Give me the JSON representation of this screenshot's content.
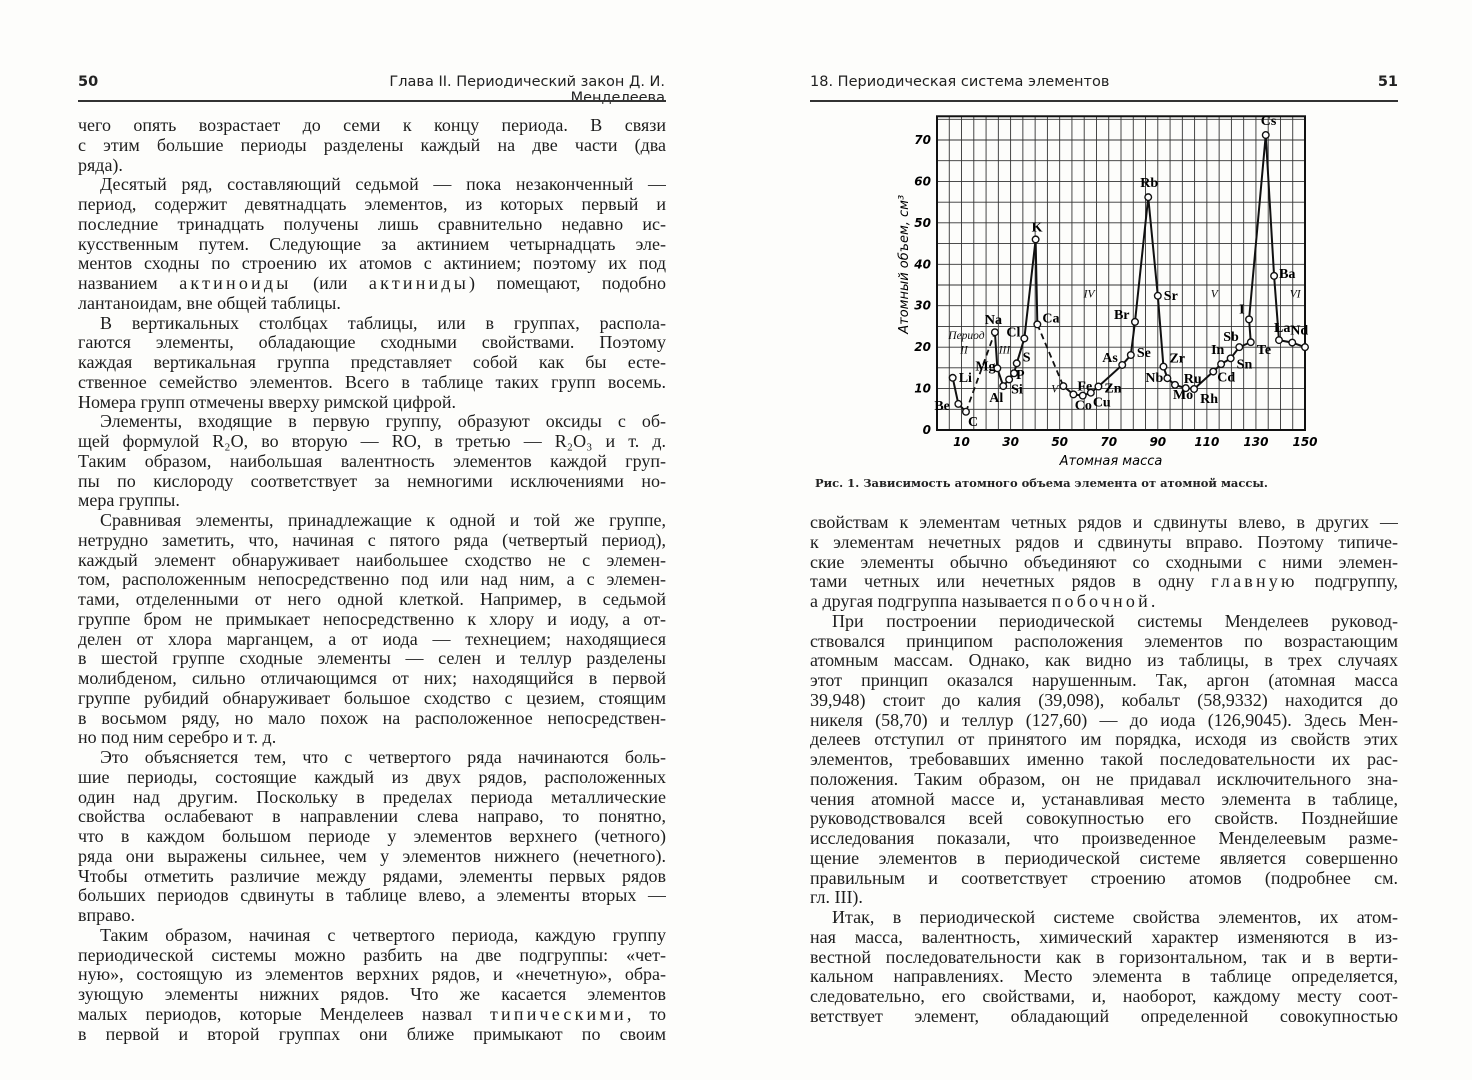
{
  "left_page": {
    "page_number": "50",
    "running_head": "Глава II. Периодический закон Д. И. Менделеева",
    "paragraphs": [
      {
        "lines": [
          "чего опять возрастает до семи к концу периода. В связи",
          "с этим большие периоды разделены каждый на две части (два",
          "ряда)."
        ]
      },
      {
        "lines": [
          "Десятый ряд, составляющий седьмой — пока незаконченный —",
          "период, содержит девятнадцать элементов, из которых первый и",
          "последние тринадцать получены лишь сравнительно недавно ис-",
          "кусственным путем. Следующие за актинием четырнадцать эле-",
          "ментов сходны по строению их атомов с актинием; поэтому их под",
          [
            {
              "t": "названием "
            },
            {
              "t": "актиноиды",
              "s": true
            },
            {
              "t": " (или "
            },
            {
              "t": "актиниды",
              "s": true
            },
            {
              "t": ") помещают, подобно"
            }
          ],
          "лантаноидам, вне общей таблицы."
        ]
      },
      {
        "lines": [
          "В вертикальных столбцах таблицы, или в группах, распола-",
          "гаются элементы, обладающие сходными свойствами. Поэтому",
          "каждая вертикальная группа представляет собой как бы есте-",
          "ственное семейство элементов. Всего в таблице таких групп восемь.",
          "Номера групп отмечены вверху римской цифрой."
        ]
      },
      {
        "lines": [
          "Элементы, входящие в первую группу, образуют оксиды с об-",
          "щей формулой R₂O, во вторую — RO, в третью — R₂O₃ и т. д.",
          "Таким образом, наибольшая валентность элементов каждой груп-",
          "пы по кислороду соответствует за немногими исключениями но-",
          "мера группы."
        ]
      },
      {
        "lines": [
          "Сравнивая элементы, принадлежащие к одной и той же группе,",
          "нетрудно заметить, что, начиная с пятого ряда (четвертый период),",
          "каждый элемент обнаруживает наибольшее сходство не с элемен-",
          "том, расположенным непосредственно под или над ним, а с элемен-",
          "тами, отделенными от него одной клеткой. Например, в седьмой",
          "группе бром не примыкает непосредственно к хлору и иоду, а от-",
          "делен от хлора марганцем, а от иода — технецием; находящиеся",
          "в шестой группе сходные элементы — селен и теллур разделены",
          "молибденом, сильно отличающимся от них; находящийся в первой",
          "группе рубидий обнаруживает большое сходство с цезием, стоящим",
          "в восьмом ряду, но мало похож на расположенное непосредствен-",
          "но под ним серебро и т. д."
        ]
      },
      {
        "lines": [
          "Это объясняется тем, что с четвертого ряда начинаются боль-",
          "шие периоды, состоящие каждый из двух рядов, расположенных",
          "один над другим. Поскольку в пределах периода металлические",
          "свойства ослабевают в направлении слева направо, то понятно,",
          "что в каждом большом периоде у элементов верхнего (четного)",
          "ряда они выражены сильнее, чем у элементов нижнего (нечетного).",
          "Чтобы отметить различие между рядами, элементы первых рядов",
          "больших периодов сдвинуты в таблице влево, а элементы вторых —",
          "вправо."
        ]
      },
      {
        "lines": [
          "Таким образом, начиная с четвертого периода, каждую группу",
          "периодической системы можно разбить на две подгруппы: «чет-",
          "ную», состоящую из элементов верхних рядов, и «нечетную», обра-",
          "зующую элементы нижних рядов. Что же касается элементов",
          [
            {
              "t": "малых периодов, которые Менделеев назвал "
            },
            {
              "t": "типическими",
              "s": true
            },
            {
              "t": ", то"
            }
          ],
          "в первой и второй группах они ближе примыкают по своим"
        ]
      }
    ]
  },
  "right_page": {
    "page_number": "51",
    "running_head": "18. Периодическая система элементов",
    "paragraphs": [
      {
        "lines": [
          "свойствам к элементам четных рядов и сдвинуты влево, в других —",
          "к элементам нечетных рядов и сдвинуты вправо. Поэтому типиче-",
          "ские элементы обычно объединяют со сходными с ними элемен-",
          [
            {
              "t": "тами четных или нечетных рядов в одну "
            },
            {
              "t": "главную",
              "s": true
            },
            {
              "t": " подгруппу,"
            }
          ],
          [
            {
              "t": "а другая подгруппа называется "
            },
            {
              "t": "побочной",
              "s": true
            },
            {
              "t": "."
            }
          ]
        ]
      },
      {
        "lines": [
          "При построении периодической системы Менделеев руковод-",
          "ствовался принципом расположения элементов по возрастающим",
          "атомным массам. Однако, как видно из таблицы, в трех случаях",
          "этот принцип оказался нарушенным. Так, аргон (атомная масса",
          "39,948) стоит до калия (39,098), кобальт (58,9332) находится до",
          "никеля (58,70) и теллур (127,60) — до иода (126,9045). Здесь Мен-",
          "делеев отступил от принятого им порядка, исходя из свойств этих",
          "элементов, требовавших именно такой последовательности их рас-",
          "положения. Таким образом, он не придавал исключительного зна-",
          "чения атомной массе и, устанавливая место элемента в таблице,",
          "руководствовался всей совокупностью его свойств. Позднейшие",
          "исследования показали, что произведенное Менделеевым разме-",
          "щение элементов в периодической системе является совершенно",
          "правильным и соответствует строению атомов (подробнее см.",
          "гл. III)."
        ]
      },
      {
        "lines": [
          "Итак, в периодической системе свойства элементов, их атом-",
          "ная масса, валентность, химический характер изменяются в из-",
          "вестной последовательности как в горизонтальном, так и в верти-",
          "кальном направлениях. Место элемента в таблице определяется,",
          "следовательно, его свойствами, и, наоборот, каждому месту соот-",
          "ветствует элемент, обладающий определенной совокупностью"
        ]
      }
    ]
  },
  "chart_data": {
    "type": "line",
    "caption": "Рис. 1. Зависимость атомного объема элемента от атомной массы.",
    "xlabel": "Атомная масса",
    "ylabel": "Атомный объем, см³",
    "xlim": [
      0,
      150
    ],
    "ylim": [
      0,
      75
    ],
    "xticks": [
      10,
      30,
      50,
      70,
      90,
      110,
      130,
      150
    ],
    "yticks": [
      0,
      10,
      20,
      30,
      40,
      50,
      60,
      70
    ],
    "grid": true,
    "series": [
      {
        "points": [
          {
            "label": "Li",
            "x": 6.4,
            "y": 12.6
          },
          {
            "label": "Be",
            "x": 8.7,
            "y": 6.3
          },
          {
            "label": "C",
            "x": 11.8,
            "y": 4.4
          }
        ]
      },
      {
        "points": [
          {
            "label": "Na",
            "x": 23.6,
            "y": 23.6
          },
          {
            "label": "Mg",
            "x": 24.6,
            "y": 14.9
          },
          {
            "label": "Al",
            "x": 27,
            "y": 10.6
          },
          {
            "label": "Si",
            "x": 29.4,
            "y": 12.2
          },
          {
            "label": "P",
            "x": 31.4,
            "y": 13.7
          },
          {
            "label": "S",
            "x": 32.5,
            "y": 16.1
          },
          {
            "label": "Cl",
            "x": 35.6,
            "y": 22.1
          },
          {
            "label": "K",
            "x": 40.2,
            "y": 46
          },
          {
            "label": "Ca",
            "x": 40.9,
            "y": 25.5
          }
        ]
      },
      {
        "points": [
          {
            "label": "",
            "x": 51.5,
            "y": 10.6
          },
          {
            "label": "Fe",
            "x": 55.6,
            "y": 8.6
          },
          {
            "label": "Co",
            "x": 59.4,
            "y": 8.3
          },
          {
            "label": "Cu",
            "x": 62.7,
            "y": 9.0
          },
          {
            "label": "Zn",
            "x": 65.8,
            "y": 10.5
          },
          {
            "label": "As",
            "x": 75.5,
            "y": 15.7
          },
          {
            "label": "Se",
            "x": 79,
            "y": 18.1
          },
          {
            "label": "Br",
            "x": 80.7,
            "y": 26.1
          },
          {
            "label": "Rb",
            "x": 86.1,
            "y": 56.2
          },
          {
            "label": "Sr",
            "x": 90,
            "y": 32.4
          },
          {
            "label": "Zr",
            "x": 92.3,
            "y": 15.3
          },
          {
            "label": "Nb",
            "x": 93.9,
            "y": 12.5
          },
          {
            "label": "Mo",
            "x": 97,
            "y": 10.9
          },
          {
            "label": "Ru",
            "x": 101.4,
            "y": 10.1
          },
          {
            "label": "Rh",
            "x": 104.8,
            "y": 9.9
          },
          {
            "label": "Cd",
            "x": 112.6,
            "y": 14.1
          },
          {
            "label": "In",
            "x": 115.8,
            "y": 15.9
          },
          {
            "label": "Sn",
            "x": 119.7,
            "y": 17.3
          },
          {
            "label": "Sb",
            "x": 123.2,
            "y": 20
          },
          {
            "label": "Te",
            "x": 127.9,
            "y": 21.2
          },
          {
            "label": "I",
            "x": 127.2,
            "y": 26.7
          },
          {
            "label": "Cs",
            "x": 134,
            "y": 71.2
          },
          {
            "label": "Ba",
            "x": 137.4,
            "y": 37.2
          },
          {
            "label": "La",
            "x": 139.4,
            "y": 21.7
          },
          {
            "label": "Nd",
            "x": 144.8,
            "y": 21.1
          },
          {
            "label": "",
            "x": 150,
            "y": 20
          }
        ]
      }
    ],
    "dashed_links": [
      [
        "C",
        "Na"
      ],
      [
        "Ca",
        ""
      ]
    ],
    "period_labels": [
      {
        "text": "Период",
        "x": 12,
        "y": 22
      },
      {
        "text": "II",
        "x": 11,
        "y": 18.5
      },
      {
        "text": "III",
        "x": 27.5,
        "y": 18.5
      },
      {
        "text": "IV",
        "x": 62,
        "y": 32
      },
      {
        "text": "V",
        "x": 48,
        "y": 9
      },
      {
        "text": "V",
        "x": 113,
        "y": 32
      },
      {
        "text": "VI",
        "x": 146,
        "y": 32
      }
    ]
  }
}
